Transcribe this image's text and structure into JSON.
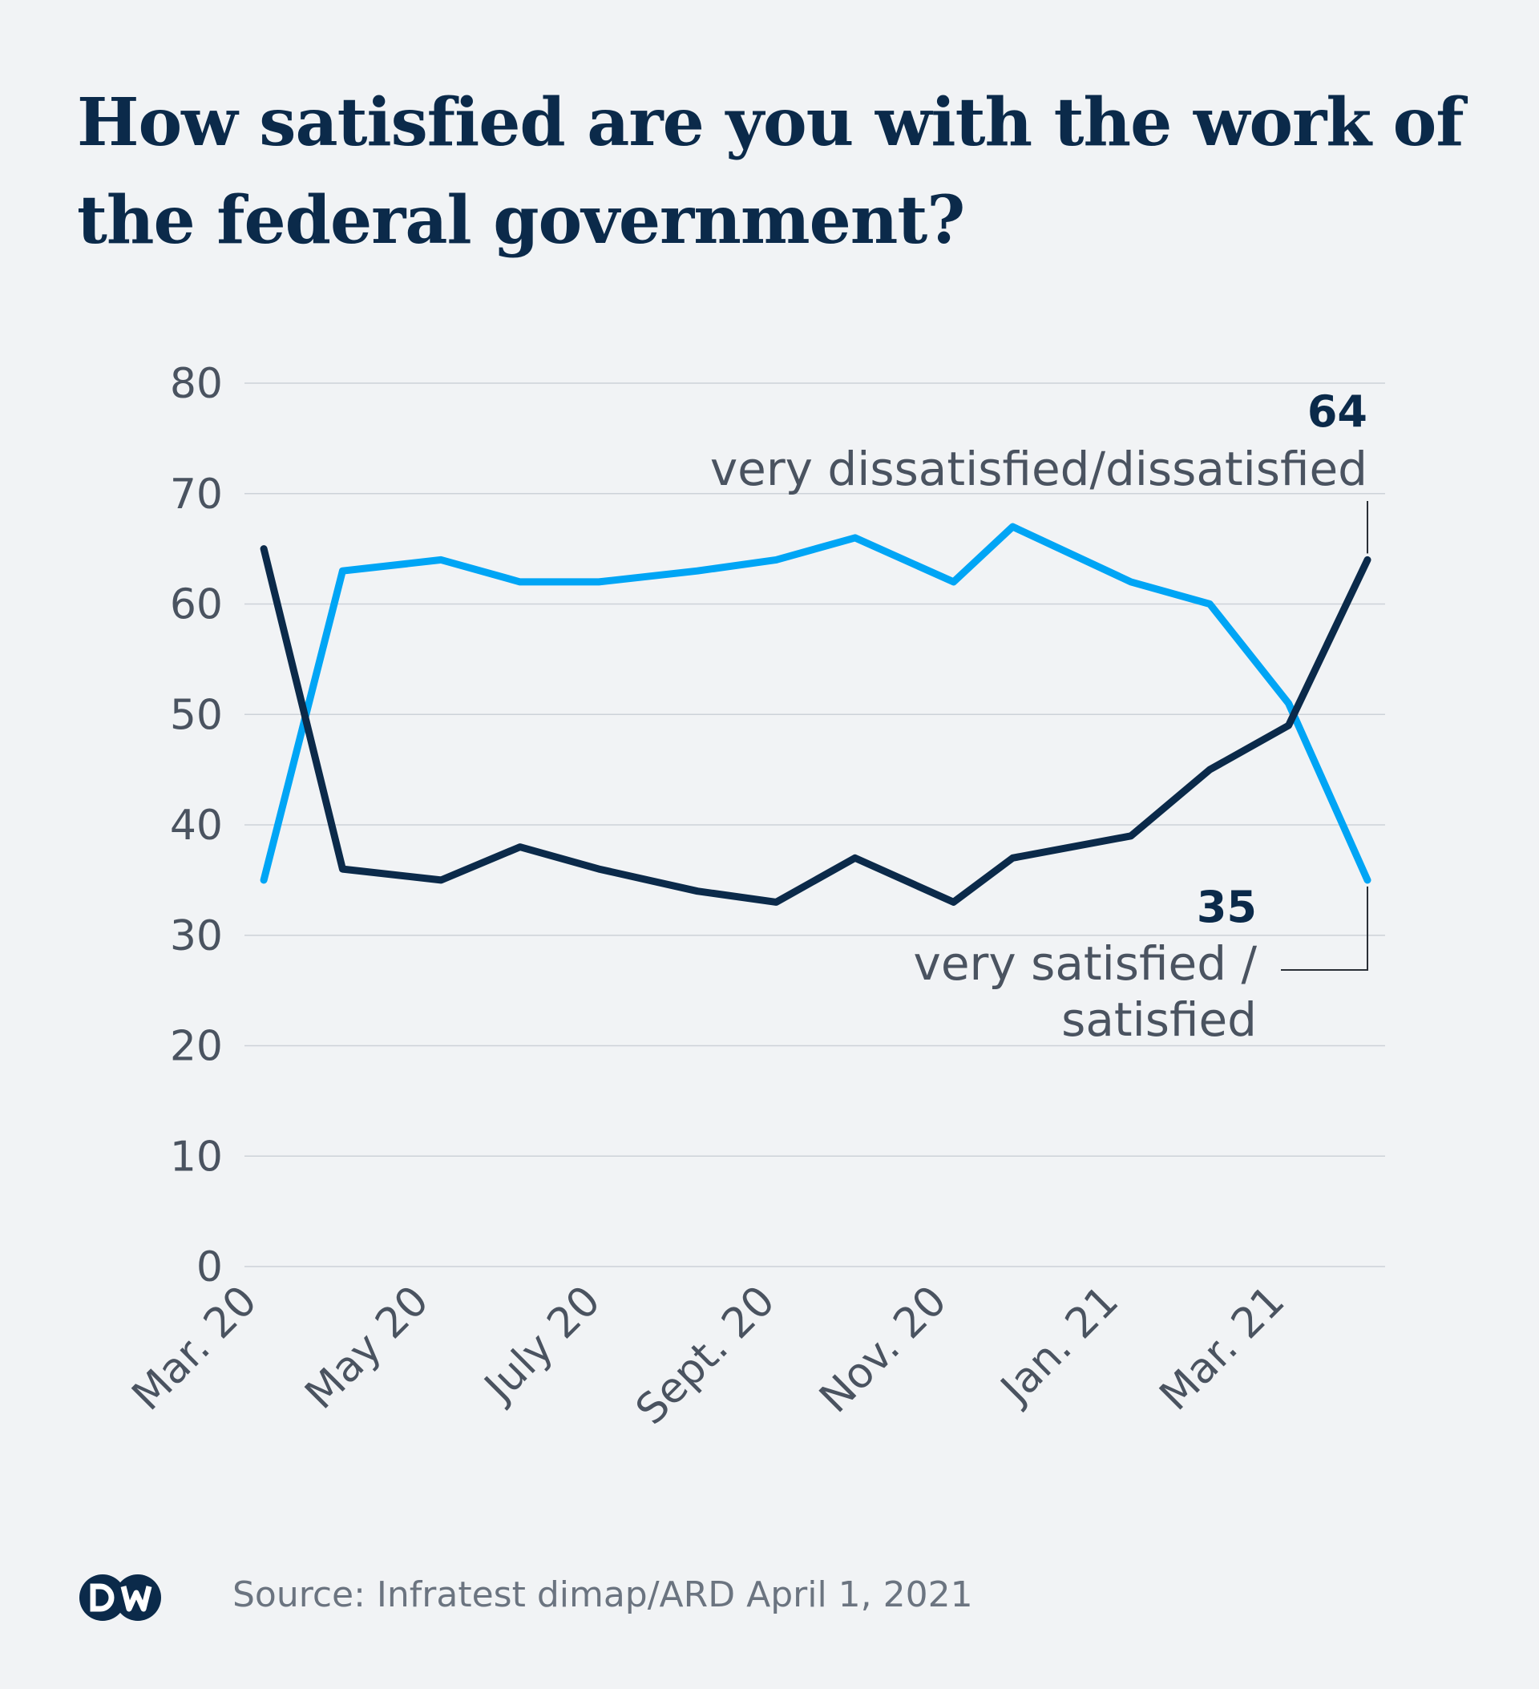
{
  "title": "How satisfied are you with the work of the federal government?",
  "source": "Source: Infratest dimap/ARD April 1, 2021",
  "logo_text": "DW",
  "colors": {
    "background": "#f1f3f5",
    "dissatisfied": "#0b2a4a",
    "satisfied": "#00a5f5",
    "text": "#4a5360",
    "title": "#0b2a4a"
  },
  "chart_data": {
    "type": "line",
    "title": "How satisfied are you with the work of the federal government?",
    "xlabel": "",
    "ylabel": "",
    "ylim": [
      0,
      80
    ],
    "yticks": [
      0,
      10,
      20,
      30,
      40,
      50,
      60,
      70,
      80
    ],
    "grid": true,
    "xtick_labels": [
      "Mar. 20",
      "May 20",
      "July 20",
      "Sept. 20",
      "Nov. 20",
      "Jan. 21",
      "Mar. 21"
    ],
    "x": [
      "2020-03",
      "2020-04",
      "2020-05",
      "2020-06",
      "2020-07",
      "2020-08",
      "2020-09",
      "2020-10",
      "2020-11",
      "2020-12",
      "2021-01",
      "2021-02",
      "2021-03",
      "2021-04"
    ],
    "series": [
      {
        "name": "very dissatisfied/dissatisfied",
        "color": "#0b2a4a",
        "x": [
          "2020-03-05",
          "2020-04-02",
          "2020-05-07",
          "2020-06-04",
          "2020-07-02",
          "2020-08-06",
          "2020-09-03",
          "2020-10-01",
          "2020-11-05",
          "2020-11-26",
          "2021-01-07",
          "2021-02-04",
          "2021-03-04",
          "2021-04-01"
        ],
        "values": [
          65,
          36,
          35,
          38,
          36,
          34,
          33,
          37,
          33,
          37,
          39,
          45,
          49,
          64
        ],
        "end_label": "64"
      },
      {
        "name": "very satisfied / satisfied",
        "color": "#00a5f5",
        "x": [
          "2020-03-05",
          "2020-04-02",
          "2020-05-07",
          "2020-06-04",
          "2020-07-02",
          "2020-08-06",
          "2020-09-03",
          "2020-10-01",
          "2020-11-05",
          "2020-11-26",
          "2021-01-07",
          "2021-02-04",
          "2021-03-04",
          "2021-04-01"
        ],
        "values": [
          35,
          63,
          64,
          62,
          62,
          63,
          64,
          66,
          62,
          67,
          62,
          60,
          51,
          35
        ],
        "end_label": "35"
      }
    ],
    "annotations": [
      {
        "series": "very dissatisfied/dissatisfied",
        "value_label": "64",
        "text_lines": [
          "very dissatisfied/dissatisfied"
        ]
      },
      {
        "series": "very satisfied / satisfied",
        "value_label": "35",
        "text_lines": [
          "very satisfied /",
          "satisfied"
        ]
      }
    ]
  }
}
